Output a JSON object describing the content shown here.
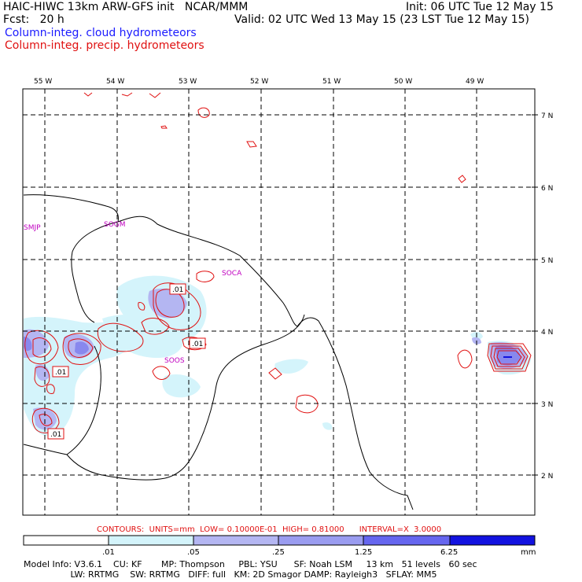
{
  "header": {
    "line1_left": "HAIC-HIWC 13km ARW-GFS init   NCAR/MMM",
    "line1_right": "Init: 06 UTC Tue 12 May 15",
    "line2_left": "Fcst:   20 h",
    "line2_right": "Valid: 02 UTC Wed 13 May 15 (23 LST Tue 12 May 15)",
    "line3": "Column-integ. cloud hydrometeors",
    "line4": "Column-integ. precip. hydrometeors"
  },
  "map": {
    "lon_labels": [
      "55 W",
      "54 W",
      "53 W",
      "52 W",
      "51 W",
      "50 W",
      "49 W"
    ],
    "lat_labels": [
      "7 N",
      "6 N",
      "5 N",
      "4 N",
      "3 N",
      "2 N"
    ],
    "stations": [
      "SMJP",
      "SOGM",
      "SOCA",
      "SOOS"
    ],
    "contour_labels": [
      ".01",
      ".01",
      ".01",
      ".01"
    ]
  },
  "contours_line": "CONTOURS:  UNITS=mm  LOW= 0.10000E-01  HIGH= 0.81000      INTERVAL=X  3.0000",
  "colorbar": {
    "ticks": [
      ".01",
      ".05",
      ".25",
      "1.25",
      "6.25"
    ],
    "unit": "mm",
    "colors": [
      "#ffffff",
      "#d4f4fb",
      "#b4b6f2",
      "#9a9cf0",
      "#6666ef",
      "#3434ef",
      "#1212e0"
    ]
  },
  "footer": {
    "line1": "Model Info: V3.6.1    CU: KF       MP: Thompson     PBL: YSU      SF: Noah LSM     13 km   51 levels   60 sec",
    "line2": "                 LW: RRTMG    SW: RRTMG   DIFF: full   KM: 2D Smagor DAMP: Rayleigh3   SFLAY: MM5"
  }
}
